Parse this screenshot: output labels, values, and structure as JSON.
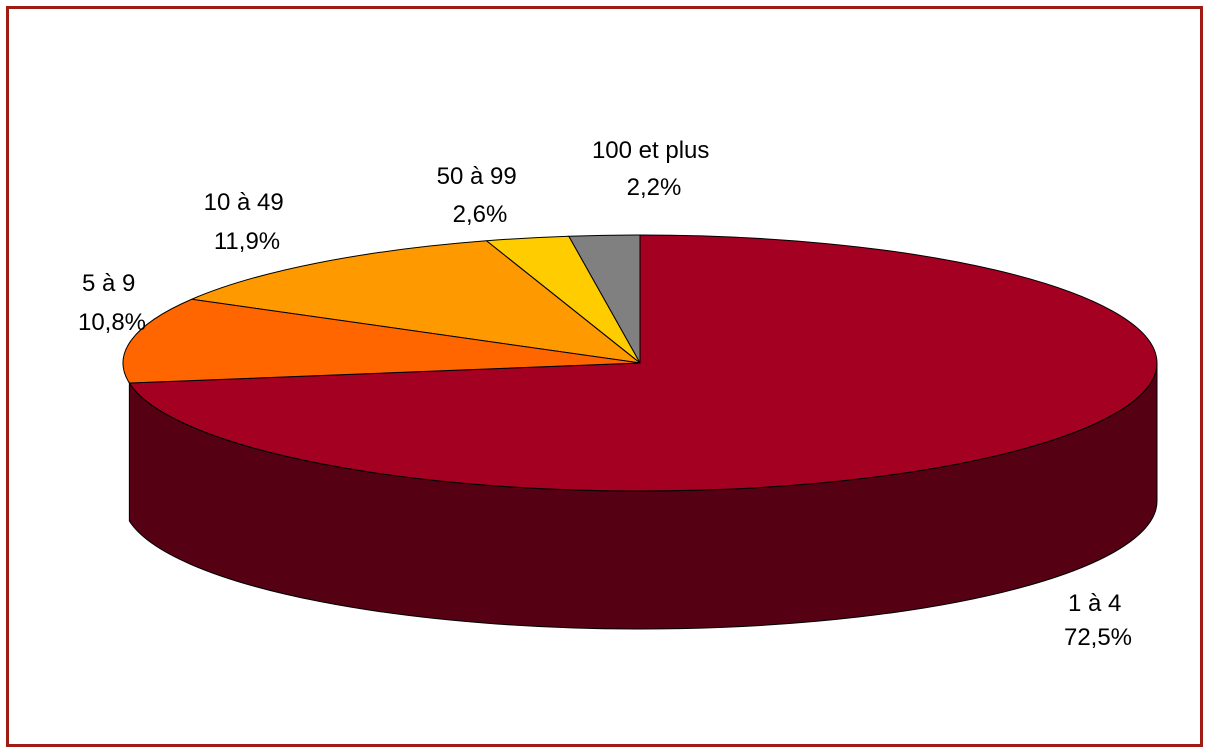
{
  "chart_data": {
    "type": "pie",
    "title": "",
    "categories": [
      "1 à 4",
      "5 à 9",
      "10 à 49",
      "50 à 99",
      "100 et plus"
    ],
    "values": [
      72.5,
      10.8,
      11.9,
      2.6,
      2.2
    ],
    "value_labels": [
      "72,5%",
      "10,8%",
      "11,9%",
      "2,6%",
      "2,2%"
    ],
    "three_d": true,
    "legend": "none",
    "colors": [
      "#a30022",
      "#ff6600",
      "#ff9900",
      "#ffcc00",
      "#808080"
    ],
    "side_colors": [
      "#550013",
      "#a34100",
      "#a36200",
      "#a38200",
      "#525252"
    ],
    "frame_color": "#a01b14"
  }
}
